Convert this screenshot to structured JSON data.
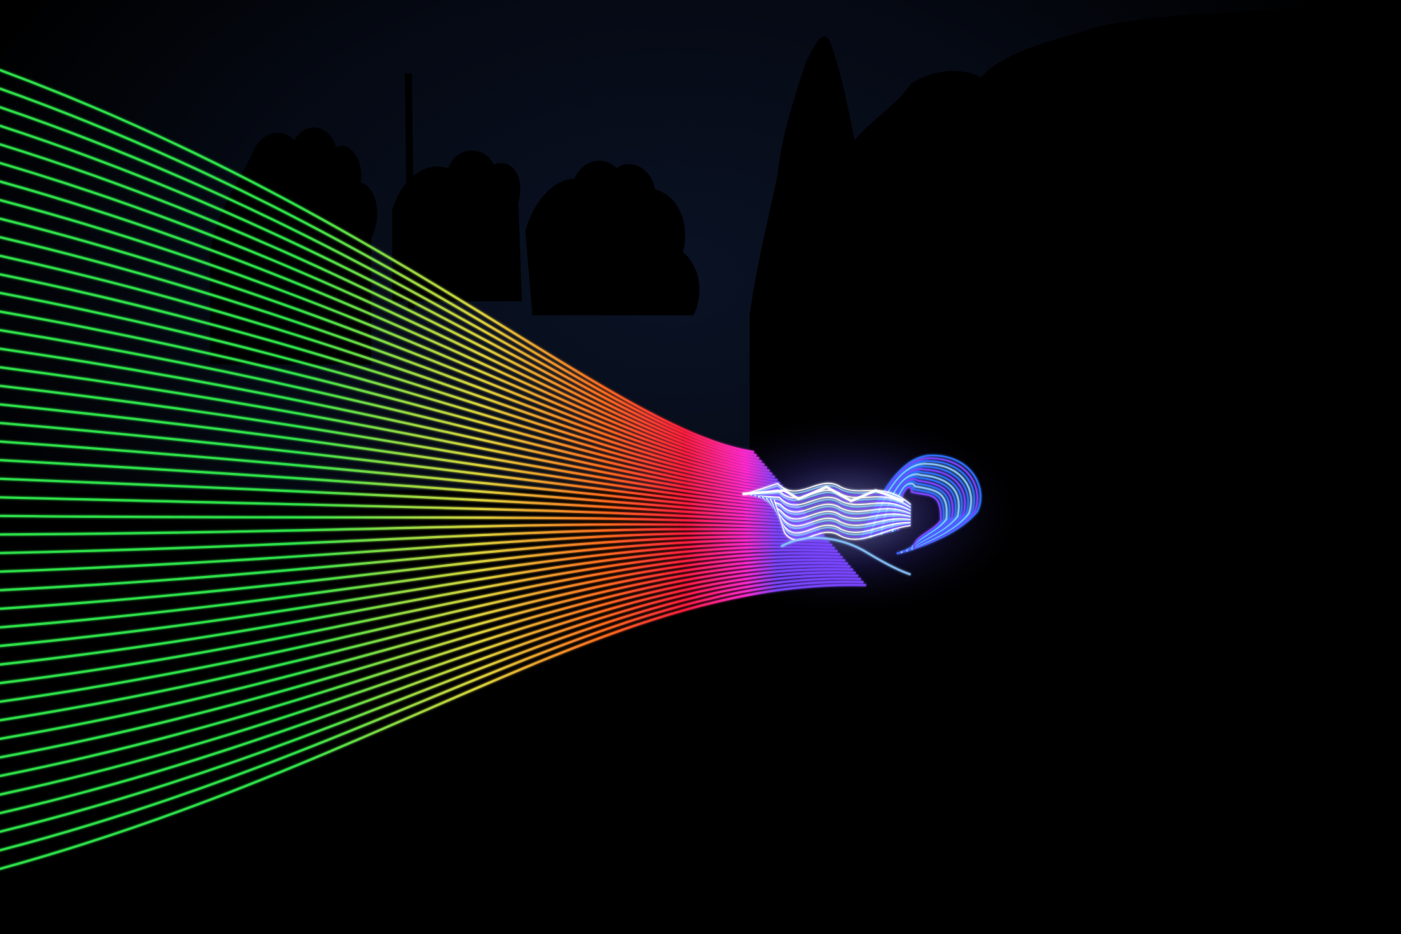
{
  "scene": {
    "subject": "light-painting",
    "background_color": "#000000",
    "sky_color": "#050913",
    "silhouette_color": "#000000",
    "palette": {
      "green": "#2ee64a",
      "yellow": "#e0d43c",
      "orange": "#ff6a1e",
      "red": "#ff1e3c",
      "magenta": "#ff2ad2",
      "violet": "#7a46ff",
      "blue": "#2a72ff",
      "cyan": "#8ac8ff",
      "white": "#ffffff"
    },
    "fan_line_count": 44,
    "loop_ring_count": 14,
    "ribbon_line_count": 22
  }
}
